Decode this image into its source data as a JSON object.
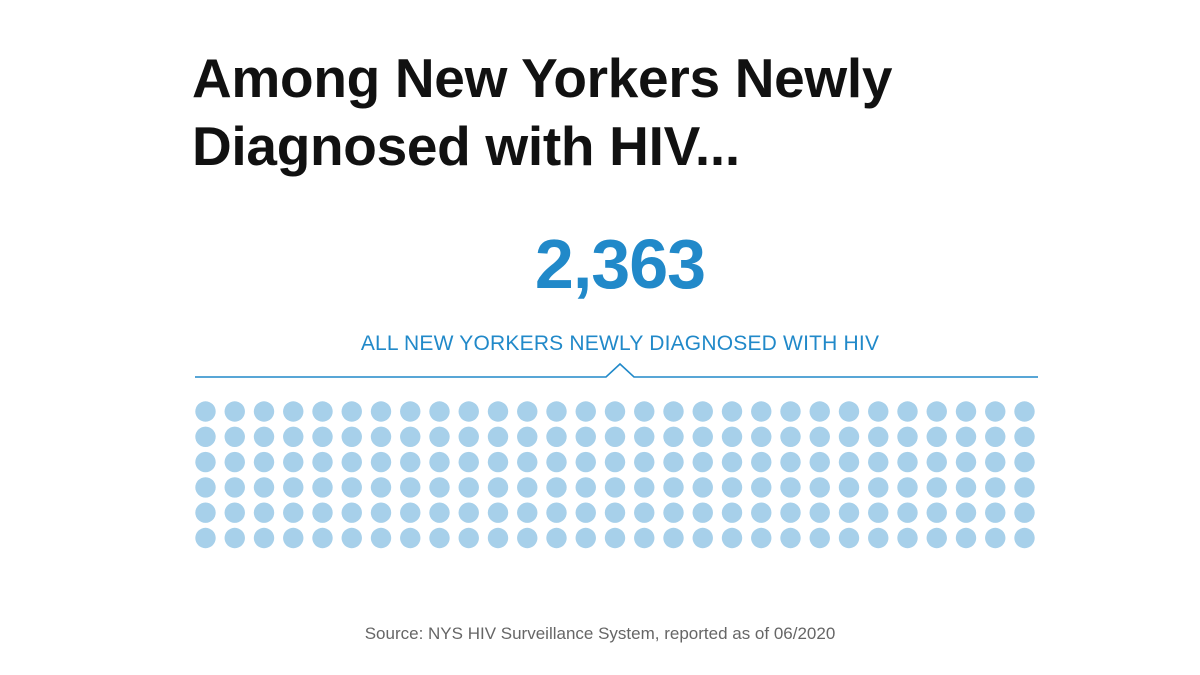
{
  "header": {
    "title": "Among New Yorkers Newly Diagnosed with HIV..."
  },
  "colors": {
    "accent": "#2189c9",
    "dot": "#a7d0ea",
    "title": "#111111",
    "source": "#666666"
  },
  "chart_data": {
    "type": "dot-matrix",
    "total_value": "2,363",
    "total_label": "ALL NEW YORKERS NEWLY DIAGNOSED WITH HIV",
    "rows": 6,
    "columns": 29,
    "dot_count": 174
  },
  "footer": {
    "source": "Source: NYS HIV Surveillance System, reported as of 06/2020"
  }
}
